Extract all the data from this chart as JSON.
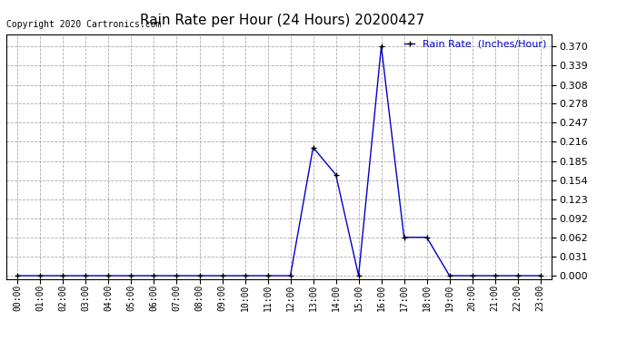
{
  "title": "Rain Rate per Hour (24 Hours) 20200427",
  "copyright": "Copyright 2020 Cartronics.com",
  "legend_label": "Rain Rate  (Inches/Hour)",
  "line_color": "#0000cc",
  "background_color": "#ffffff",
  "grid_color": "#aaaaaa",
  "yticks": [
    0.0,
    0.031,
    0.062,
    0.092,
    0.123,
    0.154,
    0.185,
    0.216,
    0.247,
    0.278,
    0.308,
    0.339,
    0.37
  ],
  "ylim": [
    -0.005,
    0.39
  ],
  "hours": [
    0,
    1,
    2,
    3,
    4,
    5,
    6,
    7,
    8,
    9,
    10,
    11,
    12,
    13,
    14,
    15,
    16,
    17,
    18,
    19,
    20,
    21,
    22,
    23
  ],
  "values": [
    0.0,
    0.0,
    0.0,
    0.0,
    0.0,
    0.0,
    0.0,
    0.0,
    0.0,
    0.0,
    0.0,
    0.0,
    0.0,
    0.207,
    0.163,
    0.0,
    0.37,
    0.062,
    0.062,
    0.0,
    0.0,
    0.0,
    0.0,
    0.0
  ]
}
